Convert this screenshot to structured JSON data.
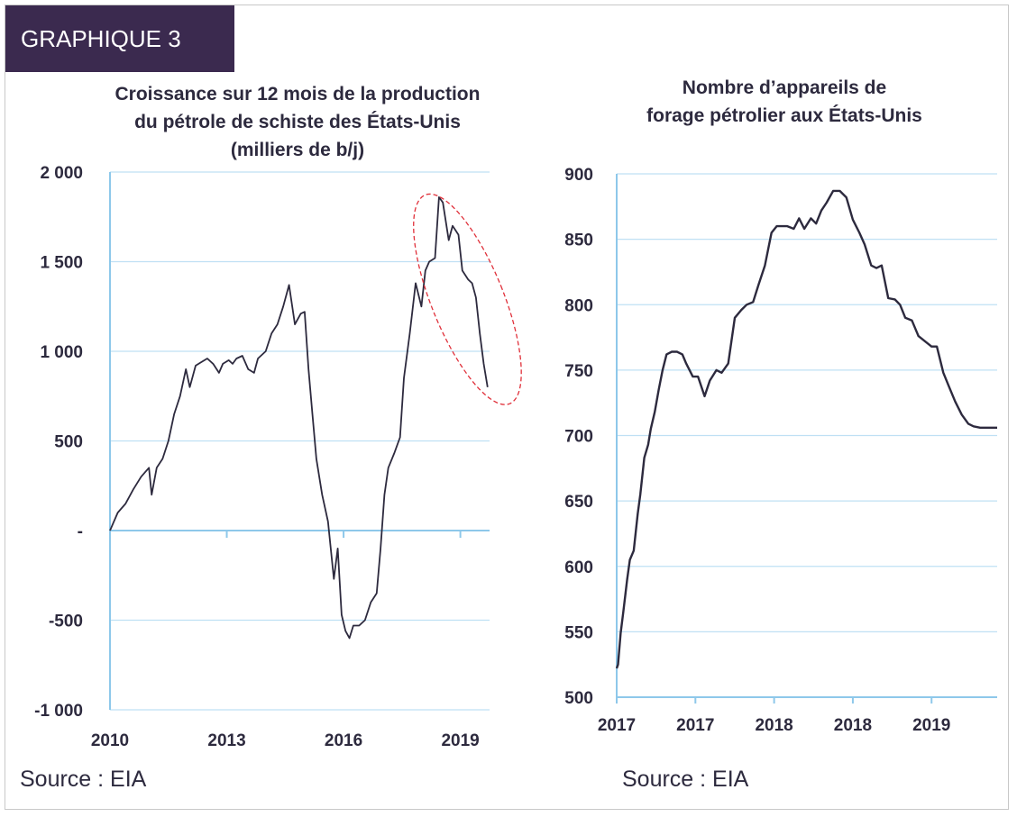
{
  "badge": {
    "label": "GRAPHIQUE 3"
  },
  "left_source": "Source : EIA",
  "right_source": "Source :  EIA",
  "colors": {
    "line": "#2d2a3e",
    "axis": "#8ec8ea",
    "grid": "#bfe0f4",
    "badge": "#3b2a4f",
    "highlight": "#e0303a"
  },
  "chart_data": [
    {
      "type": "line",
      "title_lines": [
        "Croissance sur 12 mois de la production",
        "du pétrole de schiste des États-Unis",
        "(milliers de b/j)"
      ],
      "xlabel": "",
      "ylabel": "",
      "ylim": [
        -1000,
        2000
      ],
      "xlim": [
        2010.0,
        2019.75
      ],
      "y_ticks": [
        2000,
        1500,
        1000,
        500,
        0,
        -500,
        -1000
      ],
      "y_tick_labels": [
        "2 000",
        "1 500",
        "1 000",
        "500",
        "-",
        "-500",
        "-1 000"
      ],
      "x_ticks": [
        2010,
        2013,
        2016,
        2019
      ],
      "x_tick_labels": [
        "2010",
        "2013",
        "2016",
        "2019"
      ],
      "grid": "horizontal",
      "annotation": "dashed red ellipse around 2018-2019 decline",
      "series": [
        {
          "x": [
            2010.0,
            2010.2,
            2010.4,
            2010.6,
            2010.8,
            2011.0,
            2011.07,
            2011.2,
            2011.35,
            2011.5,
            2011.65,
            2011.8,
            2011.95,
            2012.05,
            2012.2,
            2012.35,
            2012.5,
            2012.65,
            2012.8,
            2012.9,
            2013.05,
            2013.15,
            2013.25,
            2013.4,
            2013.55,
            2013.7,
            2013.8,
            2014.0,
            2014.15,
            2014.3,
            2014.45,
            2014.6,
            2014.75,
            2014.9,
            2015.0,
            2015.1,
            2015.2,
            2015.3,
            2015.45,
            2015.6,
            2015.75,
            2015.85,
            2015.95,
            2016.05,
            2016.15,
            2016.25,
            2016.4,
            2016.55,
            2016.7,
            2016.85,
            2016.95,
            2017.05,
            2017.15,
            2017.3,
            2017.45,
            2017.55,
            2017.7,
            2017.85,
            2018.0,
            2018.1,
            2018.2,
            2018.35,
            2018.45,
            2018.55,
            2018.7,
            2018.8,
            2018.95,
            2019.05,
            2019.2,
            2019.3,
            2019.4,
            2019.5,
            2019.6,
            2019.7
          ],
          "values": [
            0,
            100,
            150,
            230,
            300,
            350,
            200,
            350,
            400,
            500,
            650,
            750,
            900,
            800,
            920,
            940,
            960,
            930,
            880,
            930,
            950,
            930,
            960,
            975,
            900,
            880,
            960,
            1000,
            1100,
            1150,
            1250,
            1370,
            1150,
            1210,
            1220,
            900,
            650,
            400,
            200,
            50,
            -270,
            -100,
            -470,
            -560,
            -600,
            -530,
            -530,
            -500,
            -400,
            -350,
            -100,
            200,
            350,
            430,
            520,
            850,
            1100,
            1380,
            1250,
            1450,
            1500,
            1520,
            1860,
            1830,
            1620,
            1700,
            1650,
            1450,
            1400,
            1380,
            1300,
            1100,
            930,
            800
          ]
        }
      ]
    },
    {
      "type": "line",
      "title_lines": [
        "Nombre d’appareils de",
        "forage pétrolier aux États-Unis"
      ],
      "xlabel": "",
      "ylabel": "",
      "ylim": [
        500,
        900
      ],
      "xlim": [
        0,
        29
      ],
      "y_ticks": [
        900,
        850,
        800,
        750,
        700,
        650,
        600,
        550,
        500
      ],
      "y_tick_labels": [
        "900",
        "850",
        "800",
        "750",
        "700",
        "650",
        "600",
        "550",
        "500"
      ],
      "x_ticks": [
        0,
        6,
        12,
        18,
        24
      ],
      "x_tick_labels": [
        "2017",
        "2017",
        "2018",
        "2018",
        "2019"
      ],
      "grid": "horizontal",
      "series": [
        {
          "x": [
            0,
            0.1,
            0.3,
            0.5,
            0.8,
            1.0,
            1.3,
            1.6,
            1.8,
            2.1,
            2.4,
            2.6,
            2.9,
            3.2,
            3.5,
            3.8,
            4.2,
            4.6,
            5.0,
            5.3,
            5.8,
            6.2,
            6.7,
            7.1,
            7.6,
            8.0,
            8.5,
            9.0,
            9.5,
            9.9,
            10.4,
            10.8,
            11.3,
            11.8,
            12.2,
            12.6,
            13.0,
            13.5,
            13.9,
            14.3,
            14.8,
            15.2,
            15.6,
            16.0,
            16.5,
            17.0,
            17.5,
            18.0,
            18.5,
            18.9,
            19.4,
            19.8,
            20.2,
            20.7,
            21.2,
            21.6,
            22.0,
            22.5,
            23.0,
            23.5,
            24.0,
            24.4,
            24.9,
            25.3,
            25.8,
            26.3,
            26.8,
            27.2,
            27.7,
            28.1,
            28.5,
            28.8,
            29.0
          ],
          "values": [
            522,
            525,
            549,
            565,
            590,
            605,
            612,
            640,
            655,
            683,
            693,
            705,
            718,
            735,
            750,
            762,
            764,
            764,
            762,
            755,
            745,
            745,
            730,
            742,
            750,
            748,
            755,
            790,
            796,
            800,
            802,
            815,
            830,
            855,
            860,
            860,
            860,
            858,
            866,
            858,
            866,
            862,
            872,
            878,
            887,
            887,
            882,
            865,
            855,
            846,
            830,
            828,
            830,
            805,
            804,
            800,
            790,
            788,
            776,
            772,
            768,
            768,
            748,
            738,
            726,
            716,
            709,
            707,
            706,
            706,
            706,
            706,
            706
          ]
        }
      ]
    }
  ]
}
